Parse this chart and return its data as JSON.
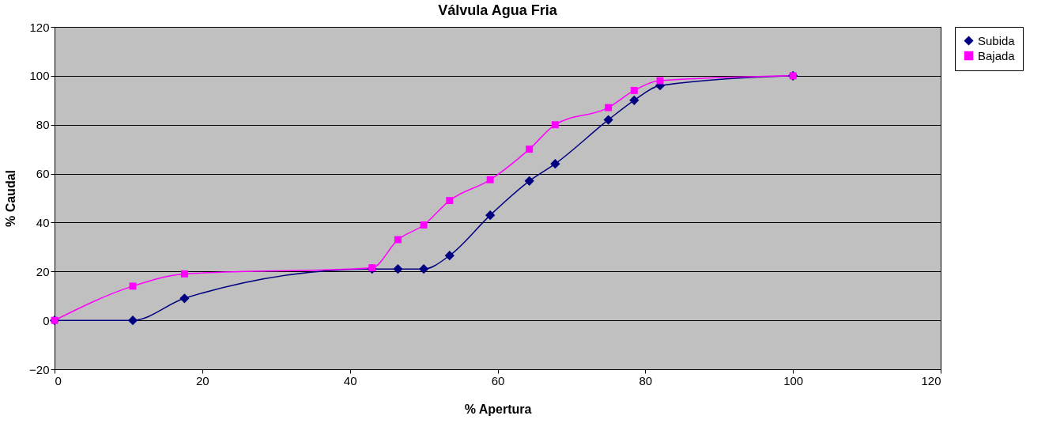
{
  "chart_data": {
    "type": "line",
    "title": "Válvula Agua Fria",
    "xlabel": "% Apertura",
    "ylabel": "% Caudal",
    "xlim": [
      0,
      120
    ],
    "xticks": [
      0,
      20,
      40,
      60,
      80,
      100,
      120
    ],
    "ylim": [
      -20,
      120
    ],
    "yticks": [
      -20,
      0,
      20,
      40,
      60,
      80,
      100,
      120
    ],
    "grid": "y",
    "legend": "right",
    "line_style": "solid",
    "x": [
      0,
      10.6,
      17.6,
      43,
      46.5,
      50,
      53.5,
      59,
      64.3,
      67.8,
      75,
      78.5,
      82,
      100
    ],
    "series": [
      {
        "name": "Subida",
        "color": "#000080",
        "marker": "diamond",
        "values": [
          0,
          0,
          9,
          21,
          21,
          21,
          26.5,
          43,
          57,
          64,
          82,
          90,
          96,
          100
        ]
      },
      {
        "name": "Bajada",
        "color": "#ff00ff",
        "marker": "square",
        "values": [
          0,
          14,
          19,
          21.5,
          33,
          39,
          49,
          57.5,
          70,
          80,
          87,
          94,
          98,
          100
        ]
      }
    ]
  }
}
